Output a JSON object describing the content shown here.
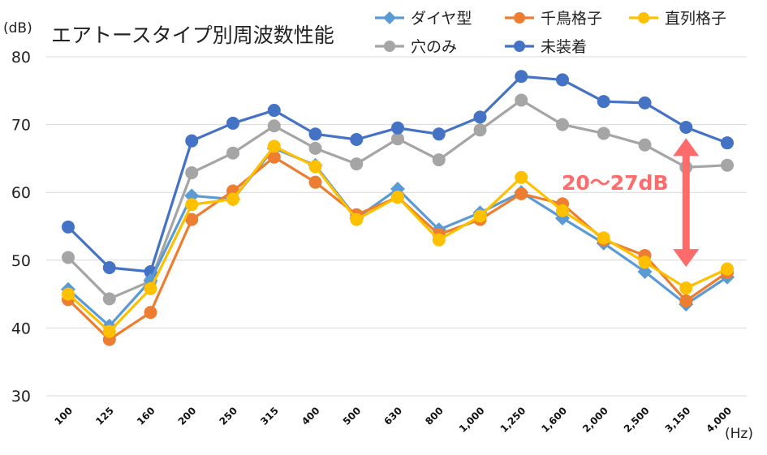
{
  "chart_data": {
    "type": "line",
    "title": "エアトースタイプ別周波数性能",
    "ylabel": "(dB)",
    "xlabel": "(Hz)",
    "ylim": [
      30,
      80
    ],
    "yticks": [
      30,
      40,
      50,
      60,
      70,
      80
    ],
    "grid": true,
    "legend_position": "top-right",
    "categories": [
      "100",
      "125",
      "160",
      "200",
      "250",
      "315",
      "400",
      "500",
      "630",
      "800",
      "1,000",
      "1,250",
      "1,600",
      "2,000",
      "2,500",
      "3,150",
      "4,000"
    ],
    "series": [
      {
        "name": "ダイヤ型",
        "color": "#5b9bd5",
        "marker": "diamond",
        "values": [
          45.7,
          40.3,
          47.0,
          59.5,
          59.0,
          66.5,
          64.0,
          56.2,
          60.5,
          54.5,
          57.0,
          60.0,
          56.2,
          52.5,
          48.3,
          43.5,
          47.5
        ]
      },
      {
        "name": "千鳥格子",
        "color": "#ed7d31",
        "marker": "circle",
        "values": [
          44.2,
          38.3,
          42.3,
          56.0,
          60.2,
          65.2,
          61.5,
          56.7,
          59.3,
          53.8,
          56.0,
          59.8,
          58.3,
          53.0,
          50.7,
          44.0,
          48.2
        ]
      },
      {
        "name": "直列格子",
        "color": "#ffc000",
        "marker": "circle",
        "values": [
          45.0,
          39.5,
          45.8,
          58.2,
          59.0,
          66.8,
          63.8,
          56.0,
          59.3,
          53.0,
          56.5,
          62.2,
          57.3,
          53.3,
          49.7,
          45.9,
          48.7
        ]
      },
      {
        "name": "穴のみ",
        "color": "#a5a5a5",
        "marker": "circle",
        "values": [
          50.4,
          44.3,
          46.9,
          62.9,
          65.8,
          69.8,
          66.5,
          64.2,
          67.9,
          64.8,
          69.2,
          73.6,
          70.0,
          68.7,
          67.0,
          63.7,
          64.0
        ]
      },
      {
        "name": "未装着",
        "color": "#4472c4",
        "marker": "circle",
        "values": [
          54.9,
          48.9,
          48.3,
          67.6,
          70.2,
          72.1,
          68.6,
          67.8,
          69.5,
          68.6,
          71.1,
          77.1,
          76.6,
          73.4,
          73.2,
          69.6,
          67.3
        ]
      }
    ],
    "annotation": {
      "text": "20〜27dB",
      "color": "#ff6b6b",
      "arrow_x_category": "3,150",
      "arrow_from": 49,
      "arrow_to": 68
    }
  }
}
